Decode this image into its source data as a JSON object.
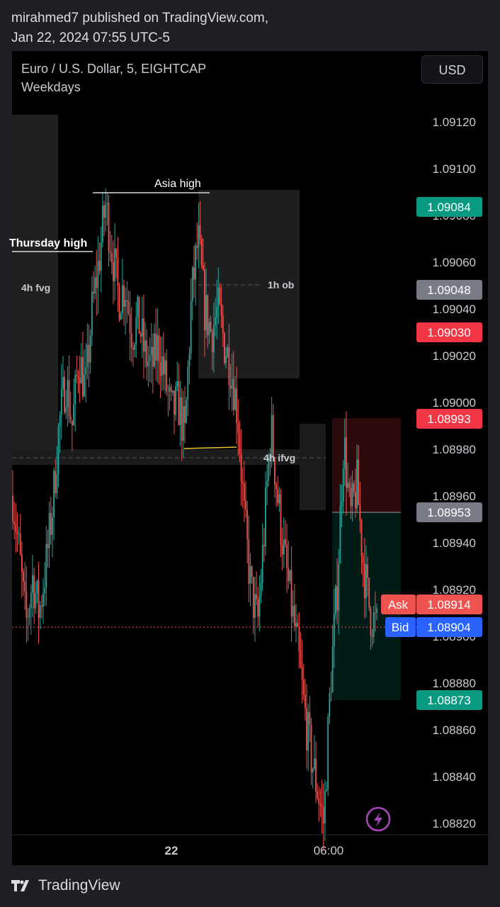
{
  "publisher": {
    "line1": "mirahmed7 published on TradingView.com,",
    "line2": "Jan 22, 2024 07:55 UTC-5"
  },
  "header": {
    "symbol": "Euro / U.S. Dollar, 5, EIGHTCAP",
    "session": "Weekdays",
    "currency_button": "USD"
  },
  "brand": {
    "name": "TradingView",
    "logo_icon": "tradingview-logo-icon"
  },
  "colors": {
    "bull": "#26a69a",
    "bear": "#ef5350",
    "background": "#000000",
    "tp": "#089981",
    "sl": "#f23645"
  },
  "chart_data": {
    "type": "candlestick",
    "ylim": [
      1.08812,
      1.09135
    ],
    "y_ticks": [
      "1.09120",
      "1.09100",
      "1.09080",
      "1.09060",
      "1.09040",
      "1.09020",
      "1.09000",
      "1.08980",
      "1.08960",
      "1.08940",
      "1.08920",
      "1.08900",
      "1.08880",
      "1.08860",
      "1.08840",
      "1.08820"
    ],
    "x_ticks": [
      "22",
      "06:00"
    ],
    "price_labels": [
      {
        "value": "1.09084",
        "color": "#089981"
      },
      {
        "value": "1.09048",
        "color": "#787b86"
      },
      {
        "value": "1.09030",
        "color": "#f23645"
      },
      {
        "value": "1.08993",
        "color": "#f23645"
      },
      {
        "value": "1.08953",
        "color": "#787b86"
      },
      {
        "value": "1.08873",
        "color": "#089981"
      }
    ],
    "ask": {
      "label": "Ask",
      "value": "1.08914"
    },
    "bid": {
      "label": "Bid",
      "value": "1.08904"
    },
    "annotations": [
      "Asia high",
      "Thursday high",
      "4h fvg",
      "1h ob",
      "4h ifvg"
    ],
    "close_path": [
      1.0896,
      1.08935,
      1.08905,
      1.08925,
      1.0891,
      1.0893,
      1.08955,
      1.0899,
      1.0901,
      1.0899,
      1.0902,
      1.09005,
      1.0904,
      1.0906,
      1.09085,
      1.09065,
      1.09045,
      1.0905,
      1.0903,
      1.09035,
      1.0902,
      1.09015,
      1.09025,
      1.0901,
      1.08995,
      1.09,
      1.08985,
      1.09045,
      1.0907,
      1.0904,
      1.0903,
      1.0904,
      1.09025,
      1.09015,
      1.08995,
      1.0895,
      1.0892,
      1.08905,
      1.08945,
      1.0899,
      1.0896,
      1.08935,
      1.08915,
      1.08895,
      1.0887,
      1.0885,
      1.08835,
      1.0882,
      1.0888,
      1.0892,
      1.08985,
      1.0895,
      1.08965,
      1.0893,
      1.0891,
      1.08904
    ]
  }
}
